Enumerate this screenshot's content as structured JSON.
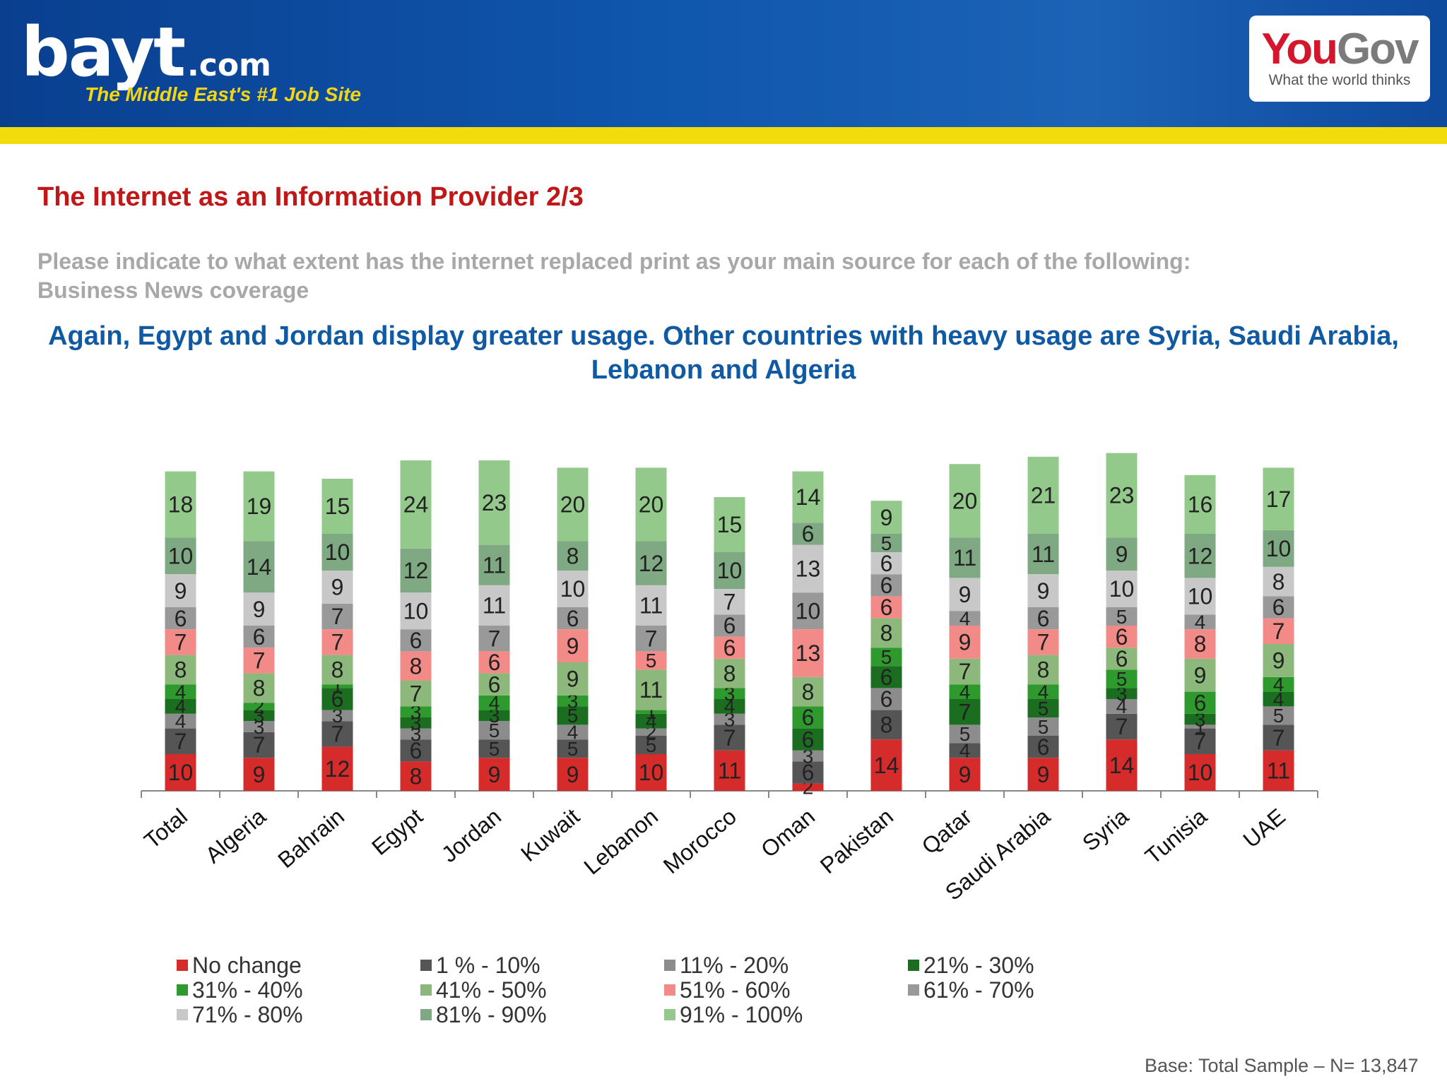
{
  "header": {
    "brand_main": "bayt",
    "brand_suffix": ".com",
    "brand_tagline": "The Middle East's #1 Job Site",
    "partner_name_a": "You",
    "partner_name_b": "Gov",
    "partner_tagline": "What the world thinks",
    "colors": {
      "header_blue": "#0f56ad",
      "gold_strip": "#f2dc0b"
    }
  },
  "slide": {
    "title": "The Internet as an Information Provider 2/3",
    "question_line1": "Please indicate to what extent has the internet replaced print as your main source for each of the following:",
    "question_line2": "Business News coverage",
    "headline_line1": "Again, Egypt and Jordan display greater usage. Other countries with heavy usage are Syria, Saudi Arabia,",
    "headline_line2": "Lebanon and Algeria",
    "base_note": "Base: Total Sample – N= 13,847"
  },
  "chart_data": {
    "type": "bar",
    "stacked": true,
    "title": "",
    "xlabel": "",
    "ylabel": "",
    "ylim": [
      0,
      100
    ],
    "grid": false,
    "legend_position": "bottom",
    "categories": [
      "Total",
      "Algeria",
      "Bahrain",
      "Egypt",
      "Jordan",
      "Kuwait",
      "Lebanon",
      "Morocco",
      "Oman",
      "Pakistan",
      "Qatar",
      "Saudi Arabia",
      "Syria",
      "Tunisia",
      "UAE"
    ],
    "series": [
      {
        "name": "No change",
        "color": "#d62b2b",
        "values": [
          10,
          9,
          12,
          8,
          9,
          9,
          10,
          11,
          2,
          14,
          9,
          9,
          14,
          10,
          11
        ]
      },
      {
        "name": "1 % - 10%",
        "color": "#555555",
        "values": [
          7,
          7,
          7,
          6,
          5,
          5,
          5,
          7,
          6,
          8,
          4,
          6,
          7,
          7,
          7
        ]
      },
      {
        "name": "11% - 20%",
        "color": "#8c8c8c",
        "values": [
          4,
          3,
          3,
          3,
          5,
          4,
          2,
          3,
          3,
          6,
          5,
          5,
          4,
          1,
          5
        ]
      },
      {
        "name": "21% - 30%",
        "color": "#1b6e1f",
        "values": [
          4,
          3,
          6,
          3,
          3,
          5,
          4,
          4,
          6,
          6,
          7,
          5,
          3,
          3,
          4
        ]
      },
      {
        "name": "31% - 40%",
        "color": "#2e9a2e",
        "values": [
          4,
          2,
          1,
          3,
          4,
          3,
          1,
          3,
          6,
          5,
          4,
          4,
          5,
          6,
          4
        ]
      },
      {
        "name": "41% - 50%",
        "color": "#8db87b",
        "values": [
          8,
          8,
          8,
          7,
          6,
          9,
          11,
          8,
          8,
          8,
          7,
          8,
          6,
          9,
          9
        ]
      },
      {
        "name": "51% - 60%",
        "color": "#f28a87",
        "values": [
          7,
          7,
          7,
          8,
          6,
          9,
          5,
          6,
          13,
          6,
          9,
          7,
          6,
          8,
          7
        ]
      },
      {
        "name": "61% - 70%",
        "color": "#999999",
        "values": [
          6,
          6,
          7,
          6,
          7,
          6,
          7,
          6,
          10,
          6,
          4,
          6,
          5,
          4,
          6
        ]
      },
      {
        "name": "71% - 80%",
        "color": "#c8c8c8",
        "values": [
          9,
          9,
          9,
          10,
          11,
          10,
          11,
          7,
          13,
          6,
          9,
          9,
          10,
          10,
          8
        ]
      },
      {
        "name": "81% - 90%",
        "color": "#7fa982",
        "values": [
          10,
          14,
          10,
          12,
          11,
          8,
          12,
          10,
          6,
          5,
          11,
          11,
          9,
          12,
          10
        ]
      },
      {
        "name": "91% - 100%",
        "color": "#93c98b",
        "values": [
          18,
          19,
          15,
          24,
          23,
          20,
          20,
          15,
          14,
          9,
          20,
          21,
          23,
          16,
          17
        ]
      }
    ]
  }
}
